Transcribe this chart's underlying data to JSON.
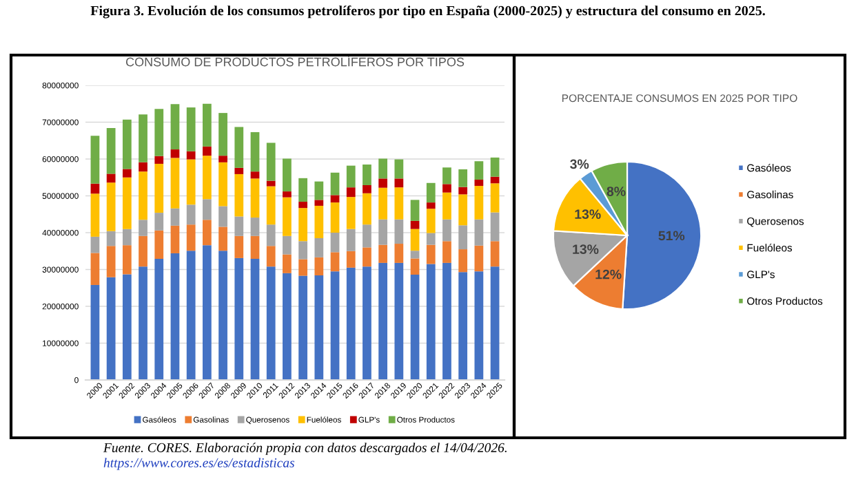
{
  "chart_data": [
    {
      "type": "bar",
      "title": "CONSUMO DE PRODUCTOS PETROLÍFEROS POR TIPOS",
      "stacked": true,
      "grid": "y",
      "legend": "bottom",
      "annotations": [
        "Figura 3. Evolución de los consumos petrolíferos por tipo en España (2000-2025) y estructura del consumo en 2025."
      ],
      "categories": [
        "2000",
        "2001",
        "2002",
        "2003",
        "2004",
        "2005",
        "2006",
        "2007",
        "2008",
        "2009",
        "2010",
        "2011",
        "2012",
        "2013",
        "2014",
        "2015",
        "2016",
        "2017",
        "2018",
        "2019",
        "2020",
        "2021",
        "2022",
        "2023",
        "2024",
        "2025"
      ],
      "ylim": [
        0,
        80000000
      ],
      "yticks": [
        0,
        10000000,
        20000000,
        30000000,
        40000000,
        50000000,
        60000000,
        70000000,
        80000000
      ],
      "series": [
        {
          "name": "Gasóleos",
          "color": "#4472c4",
          "values": [
            25800000,
            27900000,
            28700000,
            30800000,
            32900000,
            34400000,
            35100000,
            36600000,
            35100000,
            33100000,
            32900000,
            30800000,
            29000000,
            28300000,
            28400000,
            29500000,
            30500000,
            30800000,
            31800000,
            31800000,
            28600000,
            31500000,
            31800000,
            29300000,
            29500000,
            30800000
          ]
        },
        {
          "name": "Gasolinas",
          "color": "#ed7d31",
          "values": [
            8700000,
            8500000,
            7900000,
            8300000,
            7700000,
            7500000,
            7100000,
            6900000,
            6500000,
            6000000,
            6200000,
            5600000,
            5100000,
            4500000,
            4900000,
            5200000,
            4500000,
            5200000,
            4900000,
            5200000,
            4400000,
            5200000,
            5900000,
            6200000,
            7000000,
            6900000
          ]
        },
        {
          "name": "Querosenos",
          "color": "#a5a5a5",
          "values": [
            4400000,
            4000000,
            4400000,
            4400000,
            4800000,
            4700000,
            5400000,
            5600000,
            5600000,
            5300000,
            5000000,
            5800000,
            5000000,
            4900000,
            5200000,
            5300000,
            6000000,
            6200000,
            6900000,
            6600000,
            2100000,
            3200000,
            5900000,
            6500000,
            7100000,
            7800000
          ]
        },
        {
          "name": "Fuelóleos",
          "color": "#ffc000",
          "values": [
            11700000,
            13200000,
            14000000,
            13100000,
            13300000,
            13700000,
            12300000,
            11800000,
            11900000,
            11500000,
            10600000,
            10400000,
            10500000,
            9000000,
            8800000,
            8200000,
            8700000,
            8500000,
            8600000,
            8700000,
            5900000,
            6600000,
            7300000,
            8400000,
            9100000,
            7900000
          ]
        },
        {
          "name": "GLP's",
          "color": "#c00000",
          "values": [
            2700000,
            2400000,
            2300000,
            2500000,
            2100000,
            2300000,
            2200000,
            2500000,
            1800000,
            1700000,
            1900000,
            1500000,
            1600000,
            1700000,
            1600000,
            2000000,
            2600000,
            2200000,
            2500000,
            2400000,
            2200000,
            1700000,
            2300000,
            2000000,
            1700000,
            1800000
          ]
        },
        {
          "name": "Otros Productos",
          "color": "#70ad47",
          "values": [
            13000000,
            12400000,
            13400000,
            13000000,
            12800000,
            12300000,
            11900000,
            11600000,
            11600000,
            11100000,
            10700000,
            10300000,
            8900000,
            6400000,
            5000000,
            6100000,
            5900000,
            5600000,
            5400000,
            5200000,
            5700000,
            5300000,
            4500000,
            4800000,
            5000000,
            5200000
          ]
        }
      ]
    },
    {
      "type": "pie",
      "title": "PORCENTAJE CONSUMOS EN 2025 POR TIPO",
      "legend": "right",
      "annotations": [
        "Fuente. CORES. Elaboración propia con datos descargados el 14/04/2026.",
        "https://www.cores.es/es/estadisticas"
      ],
      "categories": [
        "Gasóleos",
        "Gasolinas",
        "Querosenos",
        "Fuelóleos",
        "GLP's",
        "Otros Productos"
      ],
      "values": [
        51,
        12,
        13,
        13,
        3,
        8
      ],
      "value_labels": [
        "51%",
        "12%",
        "13%",
        "13%",
        "3%",
        "8%"
      ],
      "colors": [
        "#4472c4",
        "#ed7d31",
        "#a5a5a5",
        "#ffc000",
        "#5b9bd5",
        "#70ad47"
      ]
    }
  ]
}
